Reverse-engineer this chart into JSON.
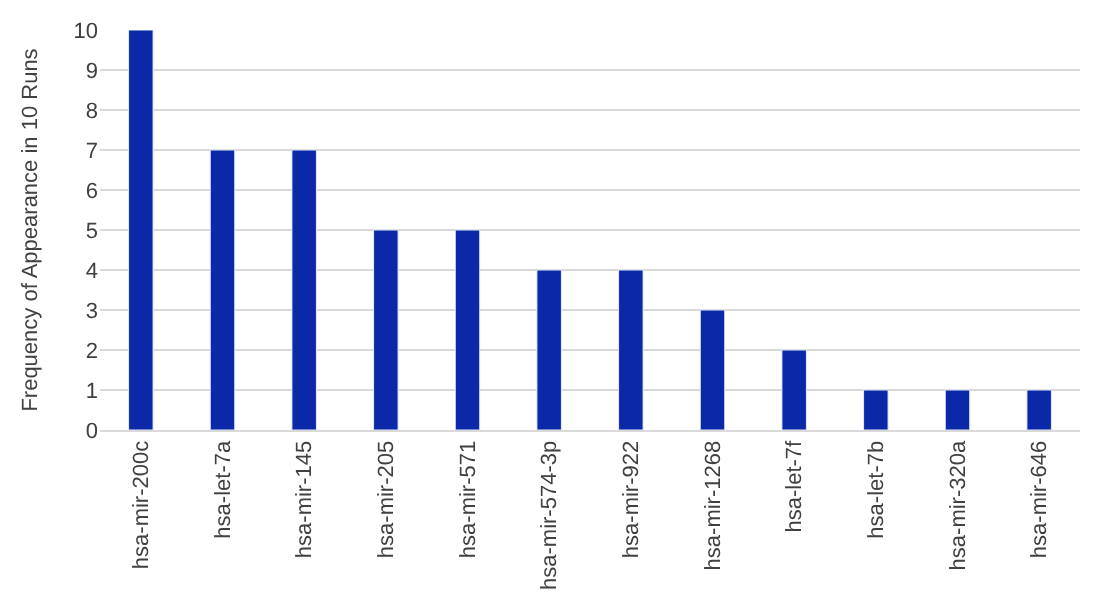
{
  "chart_data": {
    "type": "bar",
    "ylabel": "Frequency of Appearance in 10 Runs",
    "categories": [
      "hsa-mir-200c",
      "hsa-let-7a",
      "hsa-mir-145",
      "hsa-mir-205",
      "hsa-mir-571",
      "hsa-mir-574-3p",
      "hsa-mir-922",
      "hsa-mir-1268",
      "hsa-let-7f",
      "hsa-let-7b",
      "hsa-mir-320a",
      "hsa-mir-646"
    ],
    "values": [
      10,
      7,
      7,
      5,
      5,
      4,
      4,
      3,
      2,
      1,
      1,
      1
    ],
    "color": "#0a28a8",
    "ylim": [
      0,
      10
    ],
    "yticks": [
      0,
      1,
      2,
      3,
      4,
      5,
      6,
      7,
      8,
      9,
      10
    ],
    "grid": "y"
  }
}
